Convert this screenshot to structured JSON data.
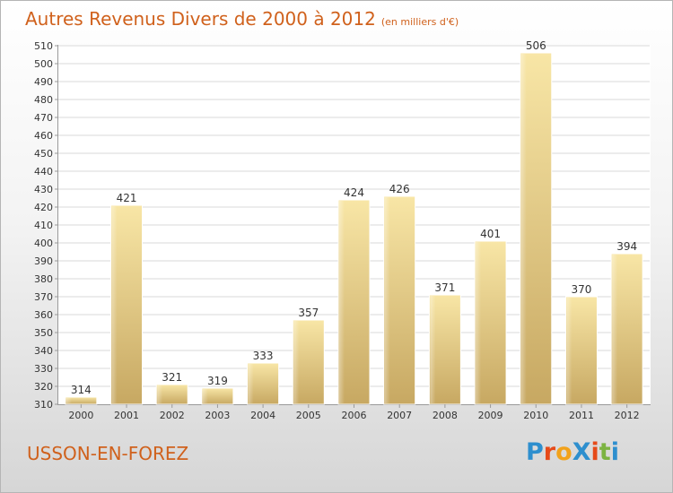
{
  "title": "Autres Revenus Divers de 2000 à 2012",
  "subtitle": "(en milliers d'€)",
  "city": "USSON-EN-FOREZ",
  "logo": {
    "text": "ProXiti",
    "colors": [
      "#2e8fce",
      "#e64a19",
      "#f2a21b",
      "#2e8fce",
      "#e64a19",
      "#7cb342",
      "#2e8fce"
    ]
  },
  "colors": {
    "title": "#d0611c",
    "bar_light": "#f7e3a0",
    "bar_dark": "#c9a964",
    "grid": "#d8d8d8"
  },
  "chart_data": {
    "type": "bar",
    "categories": [
      "2000",
      "2001",
      "2002",
      "2003",
      "2004",
      "2005",
      "2006",
      "2007",
      "2008",
      "2009",
      "2010",
      "2011",
      "2012"
    ],
    "values": [
      314,
      421,
      321,
      319,
      333,
      357,
      424,
      426,
      371,
      401,
      506,
      370,
      394
    ],
    "title": "Autres Revenus Divers de 2000 à 2012",
    "xlabel": "",
    "ylabel": "",
    "ylim": [
      310,
      510
    ],
    "yticks": [
      310,
      320,
      330,
      340,
      350,
      360,
      370,
      380,
      390,
      400,
      410,
      420,
      430,
      440,
      450,
      460,
      470,
      480,
      490,
      500,
      510
    ],
    "grid": true,
    "data_labels": true
  }
}
